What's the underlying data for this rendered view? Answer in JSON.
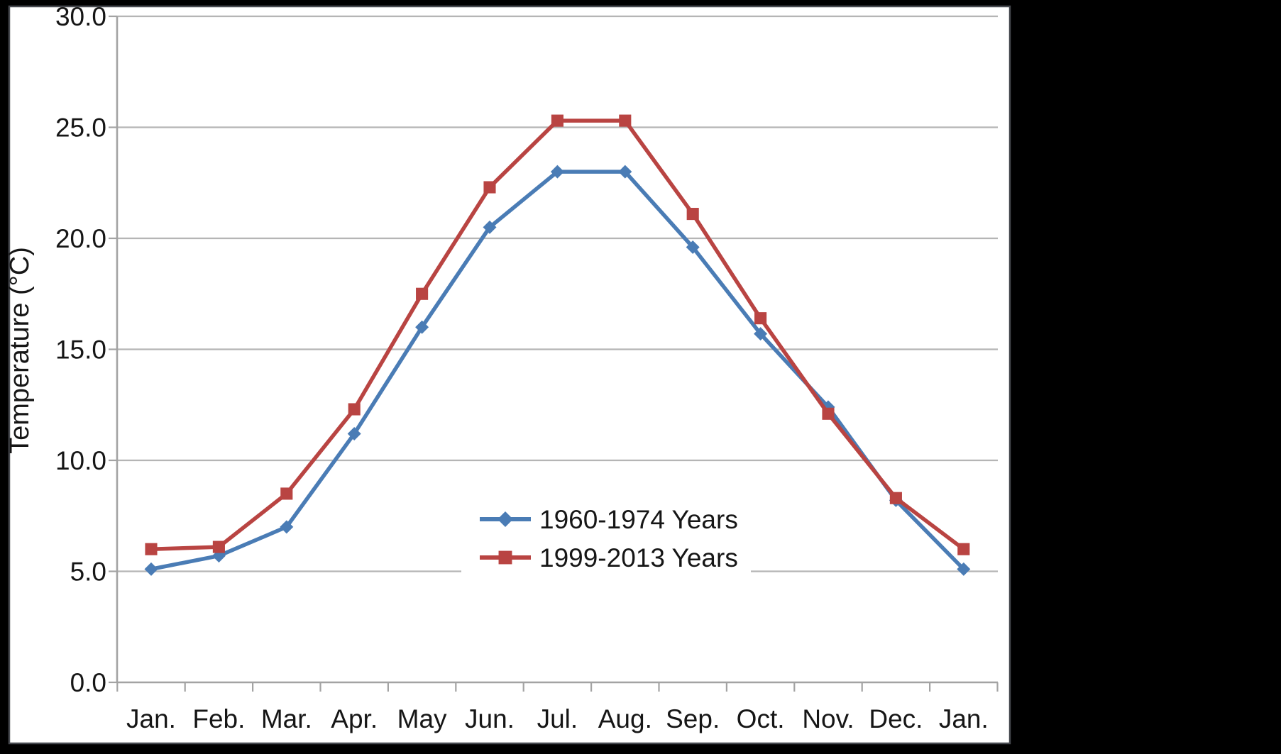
{
  "styles": {
    "page_bg": "#000000",
    "plot_bg": "#ffffff",
    "panel_edge": "#46494f",
    "grid_color": "#b5b5b5",
    "axis_color": "#a3a3a3",
    "text_color": "#161616"
  },
  "chart_data": {
    "type": "line",
    "title": "",
    "xlabel": "",
    "ylabel": "Temperature (°C)",
    "grid": true,
    "legend_position": "inside-center",
    "ylim": [
      0,
      30
    ],
    "x_categories": [
      "Jan.",
      "Feb.",
      "Mar.",
      "Apr.",
      "May",
      "Jun.",
      "Jul.",
      "Aug.",
      "Sep.",
      "Oct.",
      "Nov.",
      "Dec.",
      "Jan."
    ],
    "y_ticks": [
      {
        "value": 30,
        "label": "30.0"
      },
      {
        "value": 25,
        "label": "25.0"
      },
      {
        "value": 20,
        "label": "20.0"
      },
      {
        "value": 15,
        "label": "15.0"
      },
      {
        "value": 10,
        "label": "10.0"
      },
      {
        "value": 5,
        "label": "5.0"
      },
      {
        "value": 0,
        "label": "0.0"
      }
    ],
    "series": [
      {
        "name": "1960-1974 Years",
        "color": "#4a7cb5",
        "marker": "diamond",
        "values": [
          5.1,
          5.7,
          7.0,
          11.2,
          16.0,
          20.5,
          23.0,
          23.0,
          19.6,
          15.7,
          12.4,
          8.2,
          5.1
        ]
      },
      {
        "name": "1999-2013 Years",
        "color": "#b94442",
        "marker": "square",
        "values": [
          6.0,
          6.1,
          8.5,
          12.3,
          17.5,
          22.3,
          25.3,
          25.3,
          21.1,
          16.4,
          12.1,
          8.3,
          6.0
        ]
      }
    ]
  }
}
